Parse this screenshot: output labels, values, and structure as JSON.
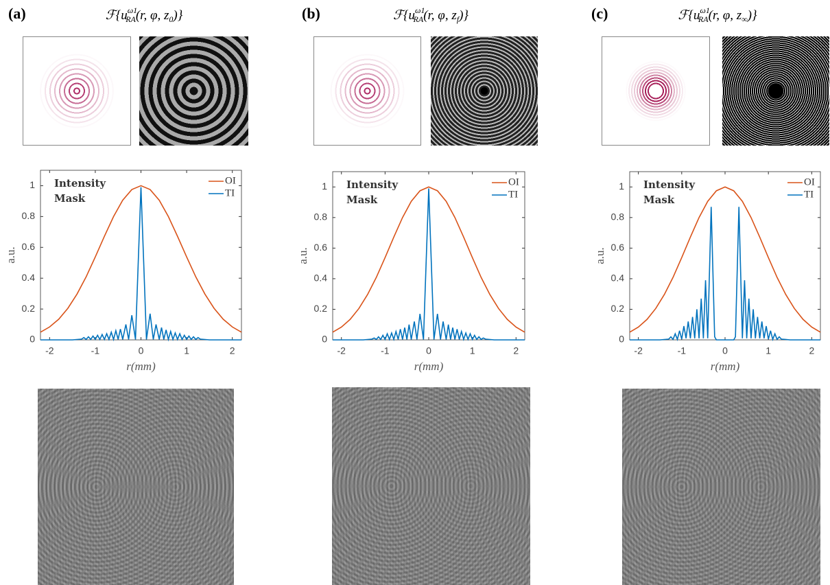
{
  "chart_data": [
    {
      "type": "line",
      "panel_label": "(a)",
      "title": [
        "ℱ{u",
        "ω1",
        "RA",
        "(r, φ, z",
        "0",
        ")}"
      ],
      "annotation": [
        "Intensity",
        "Mask"
      ],
      "xlabel": "r(mm)",
      "ylabel": "a.u.",
      "xlim": [
        -2.2,
        2.2
      ],
      "ylim": [
        0,
        1.1
      ],
      "xticks": [
        -2,
        -1,
        0,
        1,
        2
      ],
      "yticks": [
        0,
        0.2,
        0.4,
        0.6,
        0.8,
        1
      ],
      "legend": "upper right",
      "series": [
        {
          "name": "OI",
          "color": "#d95319",
          "x": [
            -2.2,
            -2,
            -1.8,
            -1.6,
            -1.4,
            -1.2,
            -1,
            -0.8,
            -0.6,
            -0.4,
            -0.2,
            0,
            0.2,
            0.4,
            0.6,
            0.8,
            1,
            1.2,
            1.4,
            1.6,
            1.8,
            2,
            2.2
          ],
          "values": [
            0.05,
            0.084,
            0.134,
            0.205,
            0.297,
            0.409,
            0.538,
            0.672,
            0.8,
            0.906,
            0.975,
            1,
            0.975,
            0.906,
            0.8,
            0.672,
            0.538,
            0.409,
            0.297,
            0.205,
            0.134,
            0.084,
            0.05
          ]
        },
        {
          "name": "TI",
          "color": "#0072bd",
          "x": [
            -2.2,
            -1.5,
            -1.3,
            -1.25,
            -1.2,
            -1.15,
            -1.1,
            -1.05,
            -1,
            -0.95,
            -0.9,
            -0.85,
            -0.8,
            -0.75,
            -0.7,
            -0.65,
            -0.6,
            -0.55,
            -0.5,
            -0.45,
            -0.4,
            -0.33,
            -0.27,
            -0.2,
            -0.12,
            -0.06,
            0,
            0.06,
            0.12,
            0.2,
            0.27,
            0.33,
            0.4,
            0.45,
            0.5,
            0.55,
            0.6,
            0.65,
            0.7,
            0.75,
            0.8,
            0.85,
            0.9,
            0.95,
            1,
            1.05,
            1.1,
            1.15,
            1.2,
            1.25,
            1.3,
            1.5,
            2.2
          ],
          "values": [
            0,
            0,
            0.005,
            0.015,
            0.003,
            0.02,
            0.003,
            0.025,
            0.003,
            0.03,
            0.003,
            0.035,
            0.003,
            0.04,
            0.003,
            0.05,
            0.003,
            0.06,
            0.003,
            0.07,
            0.003,
            0.1,
            0.003,
            0.16,
            0.003,
            0.5,
            0.99,
            0.5,
            0.003,
            0.17,
            0.003,
            0.1,
            0.003,
            0.08,
            0.003,
            0.065,
            0.003,
            0.055,
            0.003,
            0.045,
            0.003,
            0.04,
            0.003,
            0.03,
            0.003,
            0.025,
            0.003,
            0.02,
            0.003,
            0.015,
            0.005,
            0,
            0
          ]
        }
      ]
    },
    {
      "type": "line",
      "panel_label": "(b)",
      "title": [
        "ℱ{u",
        "ω1",
        "RA",
        "(r, φ, z",
        "f",
        ")}"
      ],
      "annotation": [
        "Intensity",
        "Mask"
      ],
      "xlabel": "r(mm)",
      "ylabel": "a.u.",
      "xlim": [
        -2.2,
        2.2
      ],
      "ylim": [
        0,
        1.1
      ],
      "xticks": [
        -2,
        -1,
        0,
        1,
        2
      ],
      "yticks": [
        0,
        0.2,
        0.4,
        0.6,
        0.8,
        1
      ],
      "legend": "upper right",
      "series": [
        {
          "name": "OI",
          "color": "#d95319",
          "x": [
            -2.2,
            -2,
            -1.8,
            -1.6,
            -1.4,
            -1.2,
            -1,
            -0.8,
            -0.6,
            -0.4,
            -0.2,
            0,
            0.2,
            0.4,
            0.6,
            0.8,
            1,
            1.2,
            1.4,
            1.6,
            1.8,
            2,
            2.2
          ],
          "values": [
            0.05,
            0.084,
            0.134,
            0.205,
            0.297,
            0.409,
            0.538,
            0.672,
            0.8,
            0.906,
            0.975,
            1,
            0.975,
            0.906,
            0.8,
            0.672,
            0.538,
            0.409,
            0.297,
            0.205,
            0.134,
            0.084,
            0.05
          ]
        },
        {
          "name": "TI",
          "color": "#0072bd",
          "x": [
            -2.2,
            -1.5,
            -1.3,
            -1.25,
            -1.2,
            -1.15,
            -1.1,
            -1.05,
            -1,
            -0.95,
            -0.9,
            -0.85,
            -0.8,
            -0.75,
            -0.7,
            -0.65,
            -0.6,
            -0.55,
            -0.5,
            -0.45,
            -0.4,
            -0.33,
            -0.27,
            -0.2,
            -0.12,
            -0.06,
            0,
            0.06,
            0.12,
            0.2,
            0.27,
            0.33,
            0.4,
            0.45,
            0.5,
            0.55,
            0.6,
            0.65,
            0.7,
            0.75,
            0.8,
            0.85,
            0.9,
            0.95,
            1,
            1.05,
            1.1,
            1.15,
            1.2,
            1.25,
            1.3,
            1.5,
            2.2
          ],
          "values": [
            0,
            0,
            0.005,
            0.012,
            0.003,
            0.02,
            0.003,
            0.03,
            0.003,
            0.04,
            0.003,
            0.045,
            0.003,
            0.055,
            0.003,
            0.07,
            0.003,
            0.08,
            0.003,
            0.1,
            0.003,
            0.12,
            0.003,
            0.17,
            0.003,
            0.5,
            0.99,
            0.5,
            0.003,
            0.17,
            0.003,
            0.12,
            0.003,
            0.1,
            0.003,
            0.08,
            0.003,
            0.07,
            0.003,
            0.055,
            0.003,
            0.045,
            0.003,
            0.04,
            0.003,
            0.03,
            0.003,
            0.02,
            0.003,
            0.012,
            0.005,
            0,
            0
          ]
        }
      ]
    },
    {
      "type": "line",
      "panel_label": "(c)",
      "title": [
        "ℱ{u",
        "ω1",
        "RA",
        "(r, φ, z",
        "∞",
        ")}"
      ],
      "annotation": [
        "Intensity",
        "Mask"
      ],
      "xlabel": "r(mm)",
      "ylabel": "a.u.",
      "xlim": [
        -2.2,
        2.2
      ],
      "ylim": [
        0,
        1.1
      ],
      "xticks": [
        -2,
        -1,
        0,
        1,
        2
      ],
      "yticks": [
        0,
        0.2,
        0.4,
        0.6,
        0.8,
        1
      ],
      "legend": "upper right",
      "series": [
        {
          "name": "OI",
          "color": "#d95319",
          "x": [
            -2.2,
            -2,
            -1.8,
            -1.6,
            -1.4,
            -1.2,
            -1,
            -0.8,
            -0.6,
            -0.4,
            -0.2,
            0,
            0.2,
            0.4,
            0.6,
            0.8,
            1,
            1.2,
            1.4,
            1.6,
            1.8,
            2,
            2.2
          ],
          "values": [
            0.05,
            0.084,
            0.134,
            0.205,
            0.297,
            0.409,
            0.538,
            0.672,
            0.8,
            0.906,
            0.975,
            1,
            0.975,
            0.906,
            0.8,
            0.672,
            0.538,
            0.409,
            0.297,
            0.205,
            0.134,
            0.084,
            0.05
          ]
        },
        {
          "name": "TI",
          "color": "#0072bd",
          "x": [
            -2.2,
            -1.5,
            -1.3,
            -1.25,
            -1.2,
            -1.15,
            -1.1,
            -1.05,
            -1,
            -0.95,
            -0.9,
            -0.85,
            -0.8,
            -0.75,
            -0.7,
            -0.65,
            -0.6,
            -0.55,
            -0.5,
            -0.45,
            -0.4,
            -0.32,
            -0.24,
            -0.2,
            0,
            0.2,
            0.24,
            0.32,
            0.4,
            0.45,
            0.5,
            0.55,
            0.6,
            0.65,
            0.7,
            0.75,
            0.8,
            0.85,
            0.9,
            0.95,
            1,
            1.05,
            1.1,
            1.15,
            1.2,
            1.25,
            1.3,
            1.5,
            2.2
          ],
          "values": [
            0,
            0,
            0.005,
            0.02,
            0.003,
            0.04,
            0.003,
            0.06,
            0.005,
            0.09,
            0.01,
            0.12,
            0.01,
            0.15,
            0.01,
            0.2,
            0.01,
            0.27,
            0.01,
            0.39,
            0.01,
            0.87,
            0.02,
            0,
            0,
            0,
            0.02,
            0.87,
            0.01,
            0.39,
            0.01,
            0.27,
            0.01,
            0.2,
            0.01,
            0.15,
            0.01,
            0.12,
            0.01,
            0.09,
            0.005,
            0.06,
            0.003,
            0.04,
            0.003,
            0.02,
            0.005,
            0,
            0
          ]
        }
      ]
    }
  ]
}
